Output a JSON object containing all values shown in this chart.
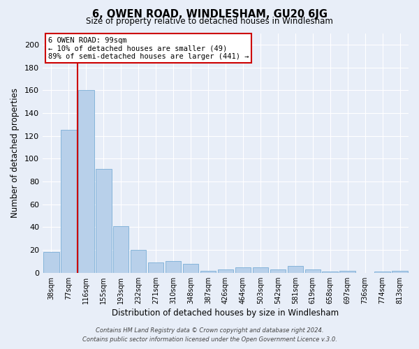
{
  "title": "6, OWEN ROAD, WINDLESHAM, GU20 6JG",
  "subtitle": "Size of property relative to detached houses in Windlesham",
  "xlabel": "Distribution of detached houses by size in Windlesham",
  "ylabel": "Number of detached properties",
  "categories": [
    "38sqm",
    "77sqm",
    "116sqm",
    "155sqm",
    "193sqm",
    "232sqm",
    "271sqm",
    "310sqm",
    "348sqm",
    "387sqm",
    "426sqm",
    "464sqm",
    "503sqm",
    "542sqm",
    "581sqm",
    "619sqm",
    "658sqm",
    "697sqm",
    "736sqm",
    "774sqm",
    "813sqm"
  ],
  "values": [
    18,
    125,
    160,
    91,
    41,
    20,
    9,
    10,
    8,
    2,
    3,
    5,
    5,
    3,
    6,
    3,
    1,
    2,
    0,
    1,
    2
  ],
  "bar_color": "#b8d0ea",
  "bar_edge_color": "#7aaed6",
  "vline_color": "#cc0000",
  "annotation_title": "6 OWEN ROAD: 99sqm",
  "annotation_line1": "← 10% of detached houses are smaller (49)",
  "annotation_line2": "89% of semi-detached houses are larger (441) →",
  "annotation_box_color": "#cc0000",
  "ylim": [
    0,
    210
  ],
  "yticks": [
    0,
    20,
    40,
    60,
    80,
    100,
    120,
    140,
    160,
    180,
    200
  ],
  "fig_bg_color": "#e8eef8",
  "plot_bg_color": "#e8eef8",
  "footer1": "Contains HM Land Registry data © Crown copyright and database right 2024.",
  "footer2": "Contains public sector information licensed under the Open Government Licence v.3.0."
}
